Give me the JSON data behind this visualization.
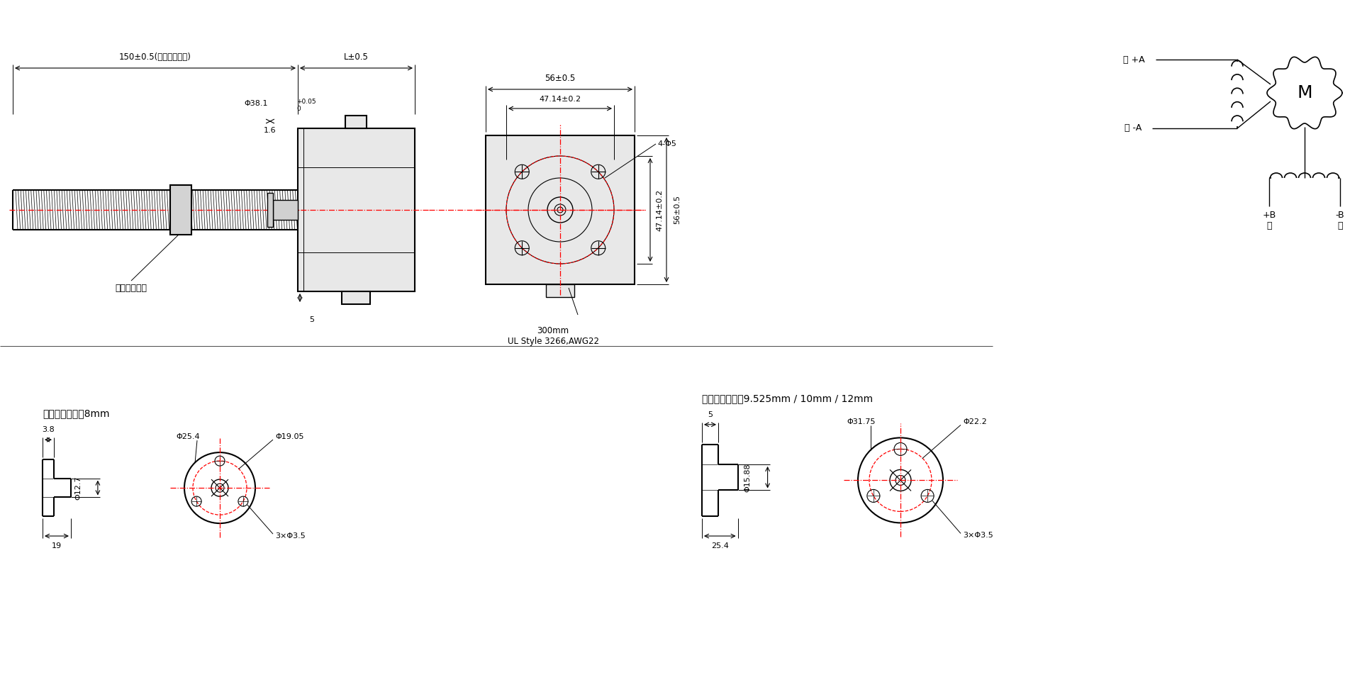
{
  "bg_color": "#ffffff",
  "line_color": "#000000",
  "red_color": "#ff0000",
  "top_section": {
    "screw_rod_label": "外部線性螺母",
    "dim_150": "150±0.5(可自定義長度)",
    "dim_L": "L±0.5",
    "dim_38": "Φ38.1",
    "dim_1_6": "1.6",
    "dim_5": "5",
    "dim_56": "56±0.5",
    "dim_47": "47.14±0.2",
    "dim_4_phi5": "4-Φ5",
    "dim_47_vert": "47.14±0.2",
    "dim_56_vert": "56±0.5",
    "cable_label": "300mm\nUL Style 3266,AWG22"
  },
  "circuit": {
    "red_A_label": "紅 +A",
    "blue_A_label": "藍 -A",
    "plus_B_label": "+B\n綠",
    "minus_B_label": "-B\n黑",
    "M_label": "M"
  },
  "bottom_left": {
    "title": "梯型絲杆直徑：8mm",
    "dim_3_8": "3.8",
    "dim_phi25_4": "Φ25.4",
    "dim_phi19_05": "Φ19.05",
    "dim_phi12_7": "Φ12.7",
    "dim_19": "19",
    "dim_3x_phi3_5": "3×Φ3.5"
  },
  "bottom_right": {
    "title": "梯型絲杆直徑：9.525mm / 10mm / 12mm",
    "dim_5": "5",
    "dim_phi31_75": "Φ31.75",
    "dim_phi22_2": "Φ22.2",
    "dim_phi15_88": "Φ15.88",
    "dim_25_4": "25.4",
    "dim_3x_phi3_5": "3×Φ3.5"
  }
}
